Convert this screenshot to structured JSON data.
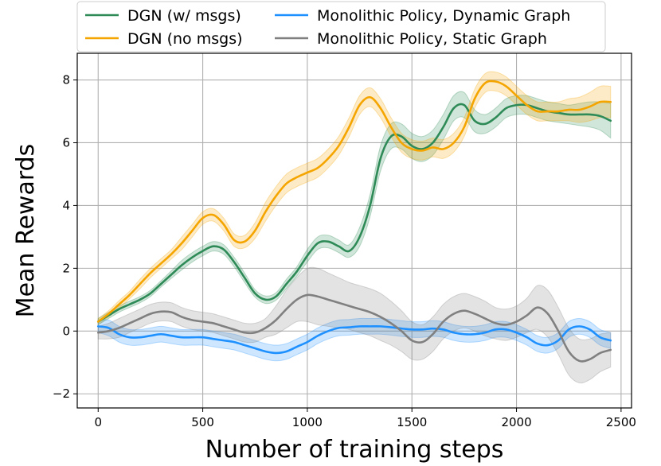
{
  "chart_data": {
    "type": "line",
    "title": "",
    "xlabel": "Number of training steps",
    "ylabel": "Mean Rewards",
    "xlim": [
      -100,
      2550
    ],
    "ylim": [
      -2.45,
      8.85
    ],
    "xticks": [
      0,
      500,
      1000,
      1500,
      2000,
      2500
    ],
    "yticks": [
      -2,
      0,
      2,
      4,
      6,
      8
    ],
    "xtick_labels": [
      "0",
      "500",
      "1000",
      "1500",
      "2000",
      "2500"
    ],
    "ytick_labels": [
      "−2",
      "0",
      "2",
      "4",
      "6",
      "8"
    ],
    "grid": true,
    "legend_position": "top",
    "series": [
      {
        "name": "DGN (w/ msgs)",
        "color": "#2e8b57",
        "x": [
          0,
          50,
          100,
          150,
          200,
          250,
          300,
          350,
          400,
          450,
          500,
          550,
          600,
          650,
          700,
          750,
          800,
          850,
          900,
          950,
          1000,
          1050,
          1100,
          1150,
          1200,
          1250,
          1300,
          1350,
          1400,
          1450,
          1500,
          1550,
          1600,
          1650,
          1700,
          1750,
          1800,
          1850,
          1900,
          1950,
          2000,
          2050,
          2100,
          2150,
          2200,
          2250,
          2300,
          2350,
          2400,
          2450
        ],
        "y": [
          0.3,
          0.5,
          0.7,
          0.85,
          1.0,
          1.2,
          1.5,
          1.8,
          2.1,
          2.35,
          2.55,
          2.7,
          2.6,
          2.2,
          1.7,
          1.2,
          1.0,
          1.1,
          1.5,
          1.9,
          2.4,
          2.8,
          2.85,
          2.7,
          2.55,
          3.0,
          4.0,
          5.5,
          6.2,
          6.2,
          5.9,
          5.8,
          6.0,
          6.5,
          7.1,
          7.2,
          6.7,
          6.6,
          6.8,
          7.1,
          7.2,
          7.2,
          7.1,
          7.0,
          6.95,
          6.9,
          6.9,
          6.9,
          6.85,
          6.7
        ],
        "band": [
          0.1,
          0.1,
          0.1,
          0.1,
          0.1,
          0.1,
          0.1,
          0.12,
          0.15,
          0.15,
          0.15,
          0.15,
          0.15,
          0.15,
          0.15,
          0.12,
          0.12,
          0.12,
          0.15,
          0.15,
          0.2,
          0.2,
          0.2,
          0.2,
          0.2,
          0.3,
          0.35,
          0.4,
          0.4,
          0.4,
          0.4,
          0.4,
          0.4,
          0.4,
          0.4,
          0.4,
          0.35,
          0.3,
          0.3,
          0.3,
          0.3,
          0.3,
          0.3,
          0.3,
          0.3,
          0.3,
          0.35,
          0.4,
          0.45,
          0.55
        ]
      },
      {
        "name": "DGN (no msgs)",
        "color": "#f5a500",
        "x": [
          0,
          50,
          100,
          150,
          200,
          250,
          300,
          350,
          400,
          450,
          500,
          550,
          600,
          650,
          700,
          750,
          800,
          850,
          900,
          950,
          1000,
          1050,
          1100,
          1150,
          1200,
          1250,
          1300,
          1350,
          1400,
          1450,
          1500,
          1550,
          1600,
          1650,
          1700,
          1750,
          1800,
          1850,
          1900,
          1950,
          2000,
          2050,
          2100,
          2150,
          2200,
          2250,
          2300,
          2350,
          2400,
          2450
        ],
        "y": [
          0.3,
          0.55,
          0.85,
          1.15,
          1.5,
          1.85,
          2.15,
          2.45,
          2.8,
          3.2,
          3.6,
          3.7,
          3.4,
          2.9,
          2.85,
          3.2,
          3.8,
          4.3,
          4.7,
          4.9,
          5.05,
          5.2,
          5.5,
          5.9,
          6.5,
          7.2,
          7.45,
          7.1,
          6.5,
          6.0,
          5.8,
          5.75,
          5.85,
          5.8,
          6.0,
          6.5,
          7.4,
          7.9,
          7.95,
          7.8,
          7.5,
          7.2,
          7.0,
          7.0,
          7.0,
          7.05,
          7.05,
          7.15,
          7.3,
          7.3
        ],
        "band": [
          0.1,
          0.1,
          0.12,
          0.12,
          0.15,
          0.15,
          0.15,
          0.15,
          0.2,
          0.2,
          0.2,
          0.2,
          0.2,
          0.2,
          0.2,
          0.25,
          0.3,
          0.3,
          0.3,
          0.3,
          0.3,
          0.3,
          0.3,
          0.3,
          0.3,
          0.3,
          0.3,
          0.3,
          0.3,
          0.3,
          0.3,
          0.3,
          0.3,
          0.3,
          0.3,
          0.3,
          0.3,
          0.3,
          0.3,
          0.3,
          0.3,
          0.3,
          0.3,
          0.3,
          0.3,
          0.35,
          0.4,
          0.45,
          0.5,
          0.5
        ]
      },
      {
        "name": "Monolithic Policy, Dynamic Graph",
        "color": "#1e90ff",
        "x": [
          0,
          50,
          100,
          150,
          200,
          250,
          300,
          350,
          400,
          450,
          500,
          550,
          600,
          650,
          700,
          750,
          800,
          850,
          900,
          950,
          1000,
          1050,
          1100,
          1150,
          1200,
          1250,
          1300,
          1350,
          1400,
          1450,
          1500,
          1550,
          1600,
          1650,
          1700,
          1750,
          1800,
          1850,
          1900,
          1950,
          2000,
          2050,
          2100,
          2150,
          2200,
          2250,
          2300,
          2350,
          2400,
          2450
        ],
        "y": [
          0.15,
          0.1,
          -0.1,
          -0.2,
          -0.2,
          -0.15,
          -0.1,
          -0.15,
          -0.2,
          -0.2,
          -0.2,
          -0.25,
          -0.3,
          -0.35,
          -0.45,
          -0.55,
          -0.65,
          -0.7,
          -0.65,
          -0.5,
          -0.35,
          -0.15,
          0.0,
          0.1,
          0.12,
          0.15,
          0.15,
          0.15,
          0.12,
          0.08,
          0.05,
          0.05,
          0.08,
          0.05,
          -0.05,
          -0.1,
          -0.1,
          -0.05,
          0.05,
          0.05,
          -0.05,
          -0.2,
          -0.4,
          -0.45,
          -0.3,
          0.05,
          0.15,
          0.05,
          -0.2,
          -0.3
        ],
        "band": [
          0.2,
          0.25,
          0.25,
          0.25,
          0.25,
          0.25,
          0.25,
          0.25,
          0.25,
          0.25,
          0.25,
          0.25,
          0.25,
          0.25,
          0.25,
          0.25,
          0.25,
          0.25,
          0.25,
          0.25,
          0.25,
          0.25,
          0.25,
          0.25,
          0.25,
          0.25,
          0.25,
          0.25,
          0.25,
          0.25,
          0.25,
          0.25,
          0.25,
          0.25,
          0.25,
          0.25,
          0.25,
          0.25,
          0.25,
          0.25,
          0.25,
          0.25,
          0.25,
          0.25,
          0.25,
          0.25,
          0.25,
          0.25,
          0.25,
          0.25
        ]
      },
      {
        "name": "Monolithic Policy, Static Graph",
        "color": "#808080",
        "x": [
          0,
          50,
          100,
          150,
          200,
          250,
          300,
          350,
          400,
          450,
          500,
          550,
          600,
          650,
          700,
          750,
          800,
          850,
          900,
          950,
          1000,
          1050,
          1100,
          1150,
          1200,
          1250,
          1300,
          1350,
          1400,
          1450,
          1500,
          1550,
          1600,
          1650,
          1700,
          1750,
          1800,
          1850,
          1900,
          1950,
          2000,
          2050,
          2100,
          2150,
          2200,
          2250,
          2300,
          2350,
          2400,
          2450
        ],
        "y": [
          -0.05,
          0.0,
          0.1,
          0.25,
          0.4,
          0.55,
          0.62,
          0.6,
          0.45,
          0.35,
          0.3,
          0.25,
          0.15,
          0.05,
          -0.05,
          -0.05,
          0.1,
          0.35,
          0.7,
          1.0,
          1.15,
          1.1,
          1.0,
          0.9,
          0.8,
          0.7,
          0.6,
          0.45,
          0.25,
          0.0,
          -0.3,
          -0.35,
          -0.1,
          0.3,
          0.55,
          0.65,
          0.55,
          0.4,
          0.25,
          0.2,
          0.3,
          0.5,
          0.75,
          0.55,
          0.0,
          -0.65,
          -0.95,
          -0.9,
          -0.7,
          -0.6
        ],
        "band": [
          0.2,
          0.25,
          0.3,
          0.3,
          0.3,
          0.3,
          0.3,
          0.3,
          0.3,
          0.3,
          0.3,
          0.3,
          0.3,
          0.3,
          0.3,
          0.3,
          0.3,
          0.45,
          0.6,
          0.7,
          0.85,
          0.9,
          0.85,
          0.8,
          0.75,
          0.75,
          0.75,
          0.75,
          0.7,
          0.65,
          0.6,
          0.55,
          0.55,
          0.55,
          0.55,
          0.55,
          0.55,
          0.55,
          0.5,
          0.5,
          0.5,
          0.55,
          0.7,
          0.75,
          0.75,
          0.75,
          0.7,
          0.65,
          0.6,
          0.55
        ]
      }
    ]
  }
}
